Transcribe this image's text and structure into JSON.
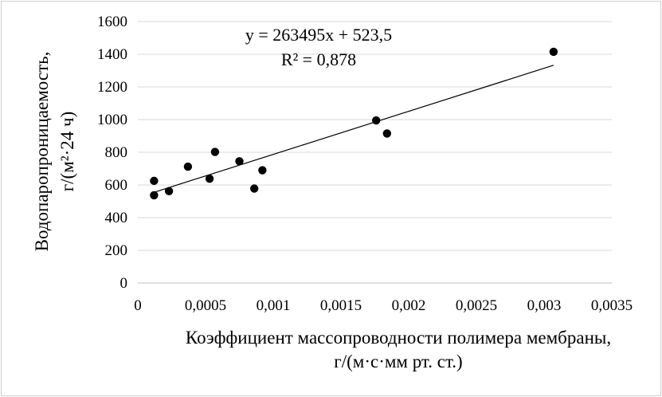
{
  "chart_data": {
    "type": "scatter",
    "title": "",
    "xlabel_line1": "Коэффициент массопроводности полимера мембраны,",
    "xlabel_line2": "г/(м·с·мм рт. ст.)",
    "ylabel_line1": "Водопаропроницаемость,",
    "ylabel_line2": "г/(м²·24 ч)",
    "xlim": [
      0,
      0.0035
    ],
    "ylim": [
      0,
      1600
    ],
    "x_ticks": [
      0,
      0.0005,
      0.001,
      0.0015,
      0.002,
      0.0025,
      0.003,
      0.0035
    ],
    "x_tick_labels": [
      "0",
      "0,0005",
      "0,001",
      "0,0015",
      "0,002",
      "0,0025",
      "0,003",
      "0,0035"
    ],
    "y_ticks": [
      0,
      200,
      400,
      600,
      800,
      1000,
      1200,
      1400,
      1600
    ],
    "y_tick_labels": [
      "0",
      "200",
      "400",
      "600",
      "800",
      "1000",
      "1200",
      "1400",
      "1600"
    ],
    "grid": "horizontal",
    "legend": "none",
    "points": [
      {
        "x": 0.00012,
        "y": 625
      },
      {
        "x": 0.00012,
        "y": 537
      },
      {
        "x": 0.00023,
        "y": 562
      },
      {
        "x": 0.00037,
        "y": 712
      },
      {
        "x": 0.00053,
        "y": 638
      },
      {
        "x": 0.00057,
        "y": 802
      },
      {
        "x": 0.00075,
        "y": 745
      },
      {
        "x": 0.00086,
        "y": 578
      },
      {
        "x": 0.00092,
        "y": 690
      },
      {
        "x": 0.00176,
        "y": 995
      },
      {
        "x": 0.00184,
        "y": 915
      },
      {
        "x": 0.00307,
        "y": 1415
      }
    ],
    "trendline": {
      "slope": 263495,
      "intercept": 523.5,
      "x_range": [
        0.0001,
        0.00307
      ],
      "equation": "y = 263495x  + 523,5",
      "r_squared": "R² = 0,878"
    },
    "colors": {
      "points": "#000000",
      "line": "#000000",
      "grid": "#d9d9d9"
    }
  }
}
